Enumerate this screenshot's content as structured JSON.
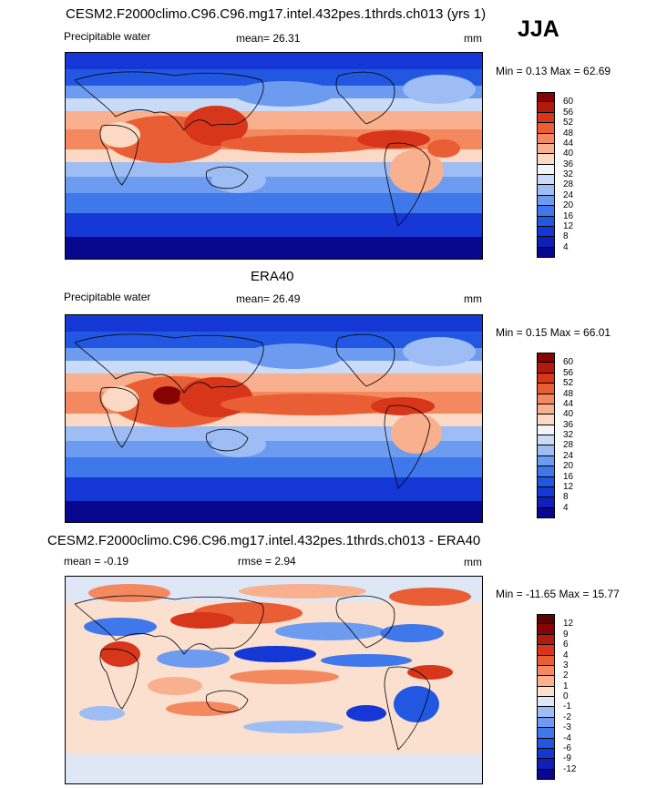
{
  "season": "JJA",
  "panels": [
    {
      "id": "model",
      "title": "CESM2.F2000climo.C96.C96.mg17.intel.432pes.1thrds.ch013 (yrs 1)",
      "left_label": "Precipitable water",
      "mid_label": "mean=  26.31",
      "units": "mm",
      "minmax": "Min =   0.13 Max =  62.69",
      "levels": [
        "4",
        "8",
        "12",
        "16",
        "20",
        "24",
        "28",
        "32",
        "36",
        "40",
        "44",
        "48",
        "52",
        "56",
        "60"
      ],
      "colors": [
        "#08088f",
        "#0f1fb8",
        "#1537d6",
        "#2257e2",
        "#3f78ea",
        "#6d9bf0",
        "#9dbdf4",
        "#c9dbf7",
        "#f2f4f8",
        "#fbd9c4",
        "#f8b08e",
        "#f4895f",
        "#ea5e35",
        "#d7361b",
        "#b01b0c",
        "#860404"
      ]
    },
    {
      "id": "obs",
      "title": "ERA40",
      "left_label": "Precipitable water",
      "mid_label": "mean=  26.49",
      "units": "mm",
      "minmax": "Min =   0.15 Max =  66.01",
      "levels": [
        "4",
        "8",
        "12",
        "16",
        "20",
        "24",
        "28",
        "32",
        "36",
        "40",
        "44",
        "48",
        "52",
        "56",
        "60"
      ],
      "colors": [
        "#08088f",
        "#0f1fb8",
        "#1537d6",
        "#2257e2",
        "#3f78ea",
        "#6d9bf0",
        "#9dbdf4",
        "#c9dbf7",
        "#f2f4f8",
        "#fbd9c4",
        "#f8b08e",
        "#f4895f",
        "#ea5e35",
        "#d7361b",
        "#b01b0c",
        "#860404"
      ]
    },
    {
      "id": "diff",
      "title": "CESM2.F2000climo.C96.C96.mg17.intel.432pes.1thrds.ch013 - ERA40",
      "left_label": "mean =  -0.19",
      "mid_label": "rmse =   2.94",
      "units": "mm",
      "minmax": "Min = -11.65 Max =  15.77",
      "levels": [
        "-12",
        "-9",
        "-6",
        "-4",
        "-3",
        "-2",
        "-1",
        "0",
        "1",
        "2",
        "3",
        "4",
        "6",
        "9",
        "12"
      ],
      "colors": [
        "#08088f",
        "#0f1fb8",
        "#1537d6",
        "#2257e2",
        "#3f78ea",
        "#6d9bf0",
        "#9dbdf4",
        "#dfe7f7",
        "#fbe0cf",
        "#f8b08e",
        "#f4895f",
        "#ea5e35",
        "#d7361b",
        "#b01b0c",
        "#860404",
        "#5e0202"
      ]
    }
  ],
  "chart_data": [
    {
      "type": "heatmap",
      "title": "CESM2.F2000climo.C96.C96.mg17.intel.432pes.1thrds.ch013 (yrs 1)",
      "field": "Precipitable water",
      "units": "mm",
      "mean": 26.31,
      "min": 0.13,
      "max": 62.69,
      "contour_levels": [
        4,
        8,
        12,
        16,
        20,
        24,
        28,
        32,
        36,
        40,
        44,
        48,
        52,
        56,
        60
      ]
    },
    {
      "type": "heatmap",
      "title": "ERA40",
      "field": "Precipitable water",
      "units": "mm",
      "mean": 26.49,
      "min": 0.15,
      "max": 66.01,
      "contour_levels": [
        4,
        8,
        12,
        16,
        20,
        24,
        28,
        32,
        36,
        40,
        44,
        48,
        52,
        56,
        60
      ]
    },
    {
      "type": "heatmap",
      "title": "CESM2.F2000climo.C96.C96.mg17.intel.432pes.1thrds.ch013 - ERA40",
      "units": "mm",
      "mean": -0.19,
      "rmse": 2.94,
      "min": -11.65,
      "max": 15.77,
      "contour_levels": [
        -12,
        -9,
        -6,
        -4,
        -3,
        -2,
        -1,
        0,
        1,
        2,
        3,
        4,
        6,
        9,
        12
      ]
    }
  ]
}
